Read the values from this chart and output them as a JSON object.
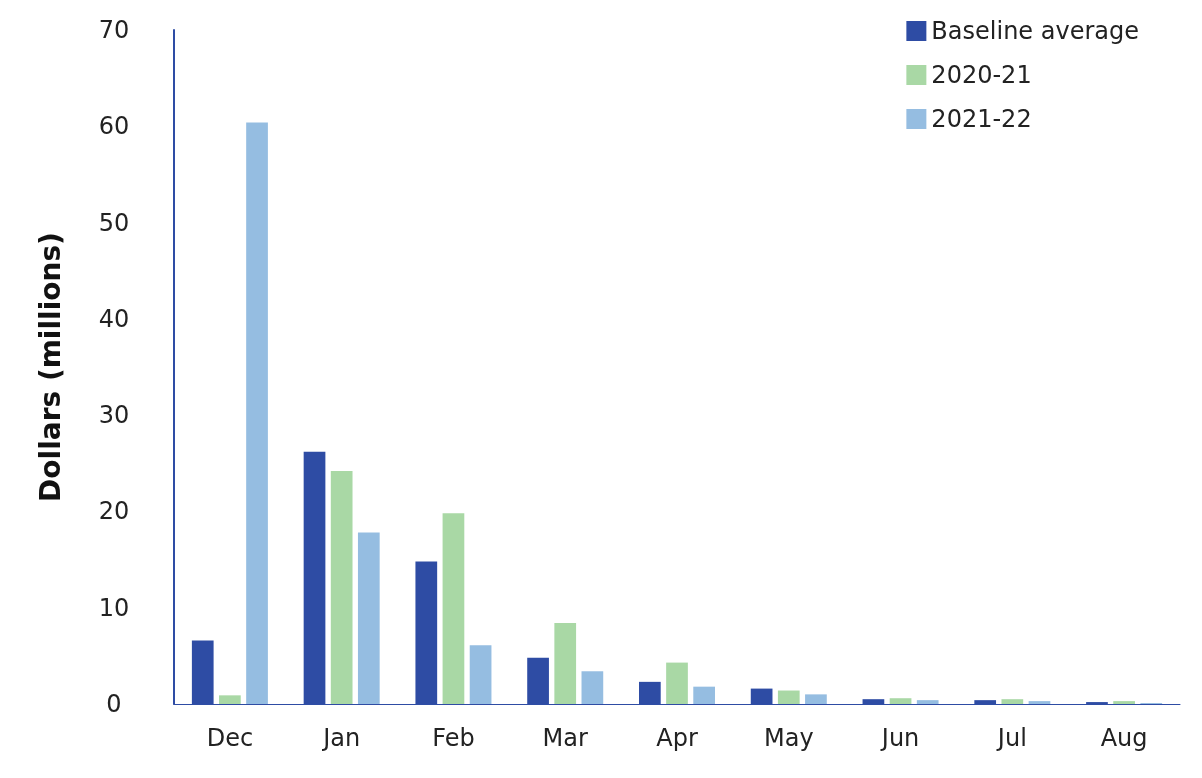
{
  "chart_data": {
    "type": "bar",
    "ylabel": "Dollars (millions)",
    "categories": [
      "Dec",
      "Jan",
      "Feb",
      "Mar",
      "Apr",
      "May",
      "Jun",
      "Jul",
      "Aug"
    ],
    "series": [
      {
        "name": "Baseline average",
        "color": "#2e4ca4",
        "values": [
          6.6,
          26.2,
          14.8,
          4.8,
          2.3,
          1.6,
          0.5,
          0.4,
          0.2
        ]
      },
      {
        "name": "2020-21",
        "color": "#a9d8a5",
        "values": [
          0.9,
          24.2,
          19.8,
          8.4,
          4.3,
          1.4,
          0.6,
          0.5,
          0.3
        ]
      },
      {
        "name": "2021-22",
        "color": "#95bde1",
        "values": [
          60.4,
          17.8,
          6.1,
          3.4,
          1.8,
          1.0,
          0.4,
          0.3,
          0.1
        ]
      }
    ],
    "ylim": [
      0,
      70
    ],
    "yticks": [
      0,
      10,
      20,
      30,
      40,
      50,
      60,
      70
    ],
    "grid": false,
    "legend": "top right"
  }
}
